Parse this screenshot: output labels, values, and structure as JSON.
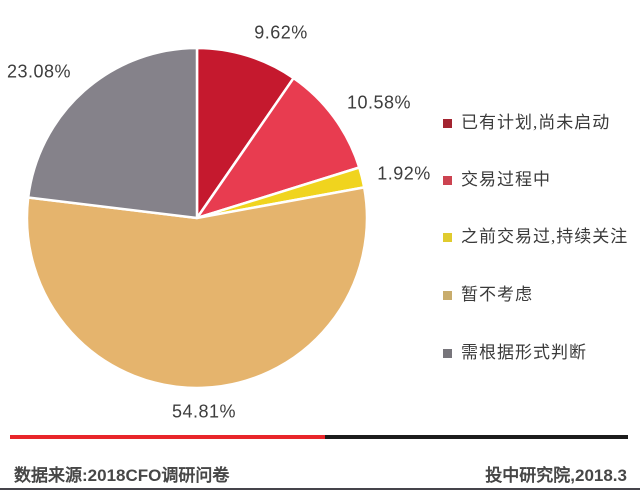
{
  "page": {
    "background": "#ffffff"
  },
  "chart_data": {
    "type": "pie",
    "title": "",
    "direction": "clockwise",
    "start_angle_deg": 0,
    "legend_position": "right",
    "slice_separator_color": "#ffffff",
    "label_text_color": "#3d3d3d",
    "slices": [
      {
        "label": "已有计划,尚未启动",
        "value": 9.62,
        "display": "9.62%",
        "color": "#c5192e",
        "legend_color": "#a32430"
      },
      {
        "label": "交易过程中",
        "value": 10.58,
        "display": "10.58%",
        "color": "#e83c50",
        "legend_color": "#cc4350"
      },
      {
        "label": "之前交易过,持续关注",
        "value": 1.92,
        "display": "1.92%",
        "color": "#f0d41e",
        "legend_color": "#e0cb2e"
      },
      {
        "label": "暂不考虑",
        "value": 54.81,
        "display": "54.81%",
        "color": "#e5b46d",
        "legend_color": "#c8ac6c"
      },
      {
        "label": "需根据形式判断",
        "value": 23.08,
        "display": "23.08%",
        "color": "#85828a",
        "legend_color": "#77757b"
      }
    ]
  },
  "footer": {
    "divider_red_color": "#e8252a",
    "divider_black_color": "#1c1c1c",
    "source_label": "数据来源:2018CFO调研问卷",
    "credit_label": "投中研究院,2018.3"
  }
}
